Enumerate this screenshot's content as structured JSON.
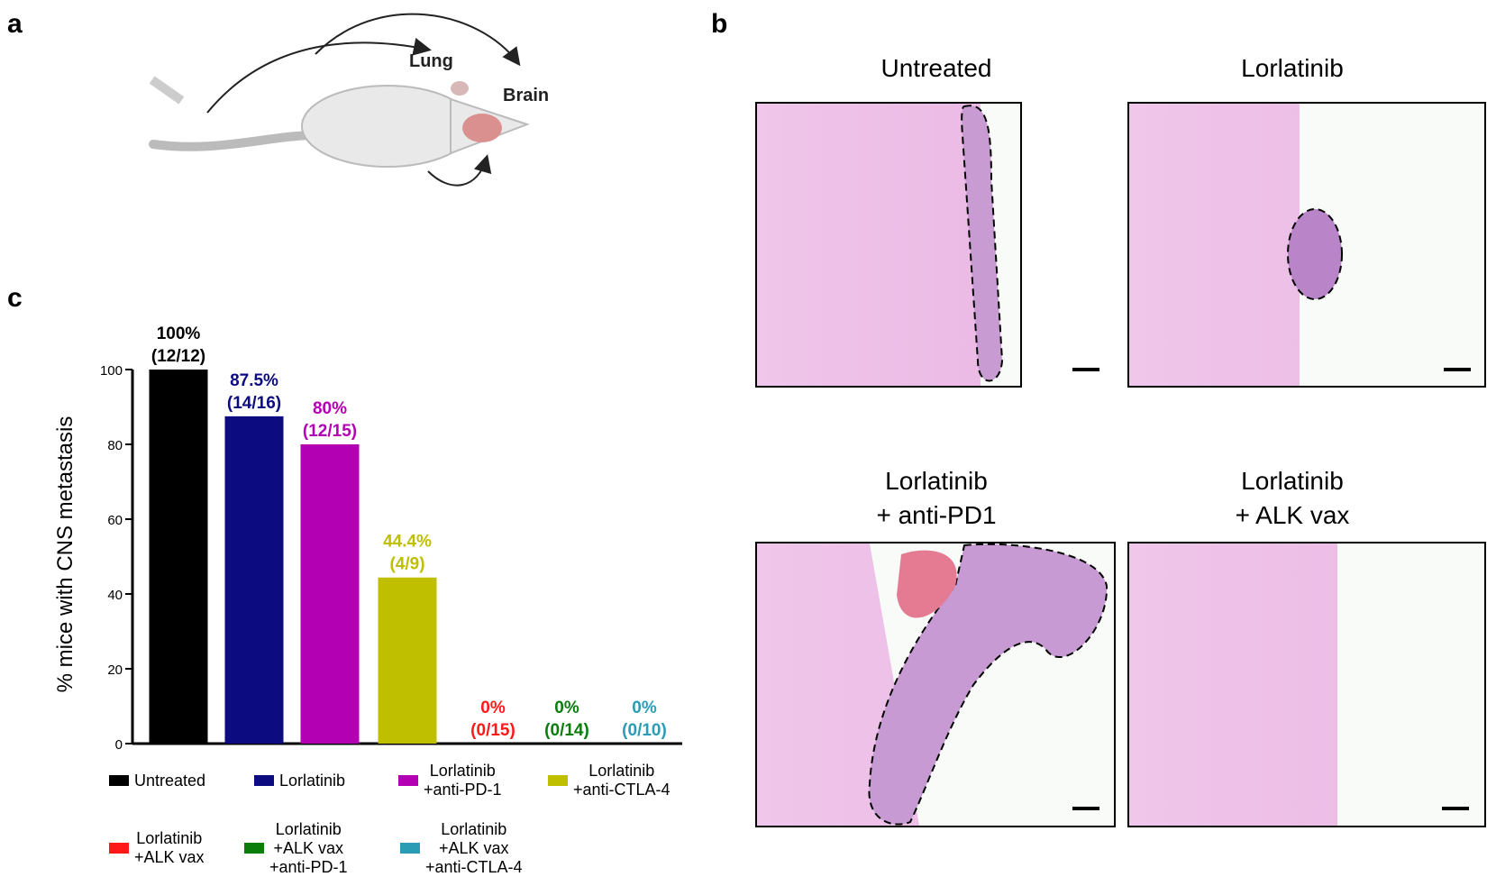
{
  "panel_a": {
    "label": "a",
    "lung": "Lung",
    "brain": "Brain"
  },
  "panel_b": {
    "label": "b",
    "images": [
      {
        "title": "Untreated"
      },
      {
        "title": "Lorlatinib"
      },
      {
        "title": "Lorlatinib\n+ anti-PD1"
      },
      {
        "title": "Lorlatinib\n+ ALK vax"
      }
    ]
  },
  "panel_c": {
    "label": "c"
  },
  "chart_data": {
    "type": "bar",
    "y_label": "% mice with CNS metastasis",
    "categories": [
      "Untreated",
      "Lorlatinib",
      "Lorlatinib\n+anti-PD-1",
      "Lorlatinib\n+anti-CTLA-4",
      "Lorlatinib\n+ALK vax",
      "Lorlatinib\n+ALK vax\n+anti-PD-1",
      "Lorlatinib\n+ALK vax\n+anti-CTLA-4"
    ],
    "values": [
      100,
      87.5,
      80,
      44.4,
      0,
      0,
      0
    ],
    "value_labels": [
      "100%",
      "87.5%",
      "80%",
      "44.4%",
      "0%",
      "0%",
      "0%"
    ],
    "count_labels": [
      "(12/12)",
      "(14/16)",
      "(12/15)",
      "(4/9)",
      "(0/15)",
      "(0/14)",
      "(0/10)"
    ],
    "colors": [
      "#000000",
      "#0c0c80",
      "#b300b3",
      "#bfbf00",
      "#ff1a1a",
      "#0a7d0a",
      "#2a9db5"
    ],
    "ylim": [
      0,
      100
    ],
    "yticks": [
      0,
      20,
      40,
      60,
      80,
      100
    ]
  }
}
